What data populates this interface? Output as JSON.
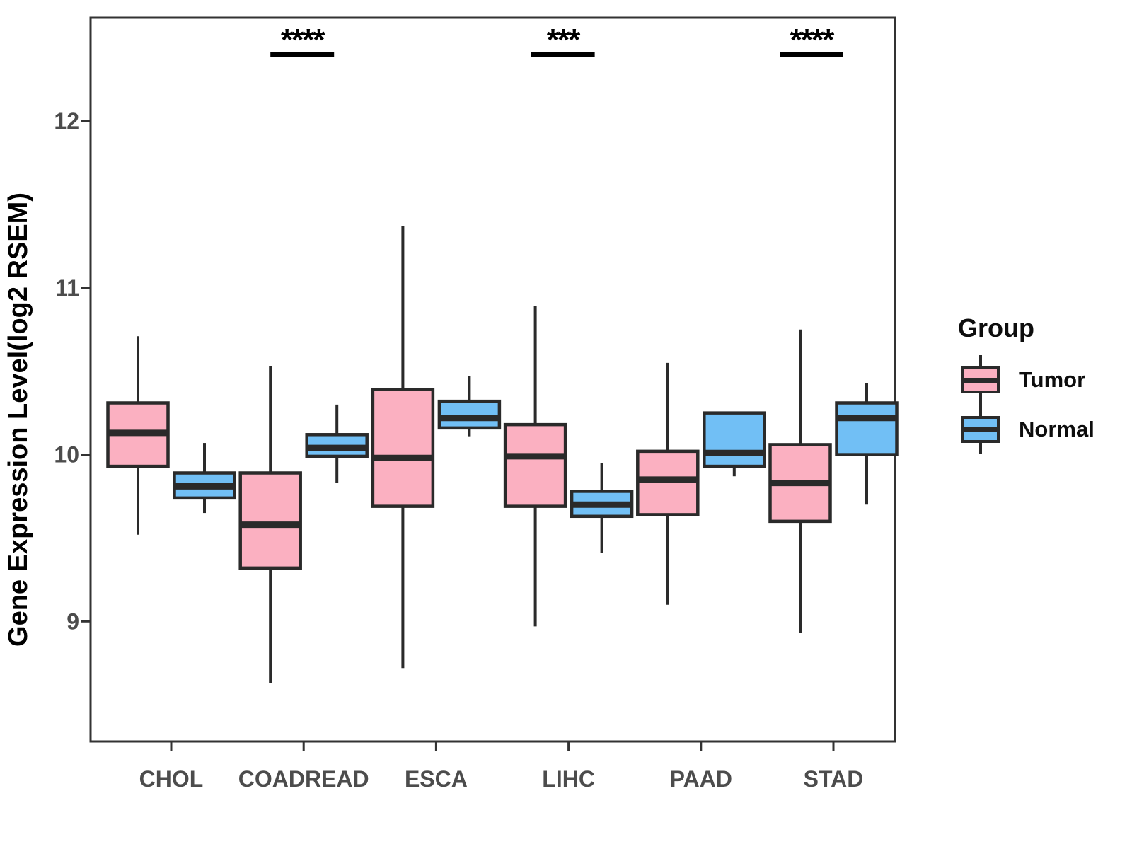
{
  "chart_data": {
    "type": "boxplot",
    "title": "",
    "xlabel": "",
    "ylabel": "Gene Expression Level(log2 RSEM)",
    "categories": [
      "CHOL",
      "COADREAD",
      "ESCA",
      "LIHC",
      "PAAD",
      "STAD"
    ],
    "y_ticks": [
      9,
      10,
      11,
      12
    ],
    "ylim": [
      8.28,
      12.62
    ],
    "grid": false,
    "legend": {
      "title": "Group",
      "position": "right"
    },
    "colors": {
      "tumor": "#FBB0C1",
      "normal": "#71BFF5",
      "stroke": "#2A2A2A",
      "axis_text": "#4C4C4C",
      "border": "#333333"
    },
    "series": [
      {
        "name": "Tumor",
        "color": "#FBB0C1",
        "boxes": [
          {
            "category": "CHOL",
            "min": 9.52,
            "q1": 9.93,
            "median": 10.13,
            "q3": 10.31,
            "max": 10.71
          },
          {
            "category": "COADREAD",
            "min": 8.63,
            "q1": 9.32,
            "median": 9.58,
            "q3": 9.89,
            "max": 10.53
          },
          {
            "category": "ESCA",
            "min": 8.72,
            "q1": 9.69,
            "median": 9.98,
            "q3": 10.39,
            "max": 11.37
          },
          {
            "category": "LIHC",
            "min": 8.97,
            "q1": 9.69,
            "median": 9.99,
            "q3": 10.18,
            "max": 10.89
          },
          {
            "category": "PAAD",
            "min": 9.1,
            "q1": 9.64,
            "median": 9.85,
            "q3": 10.02,
            "max": 10.55
          },
          {
            "category": "STAD",
            "min": 8.93,
            "q1": 9.6,
            "median": 9.83,
            "q3": 10.06,
            "max": 10.75
          }
        ]
      },
      {
        "name": "Normal",
        "color": "#71BFF5",
        "boxes": [
          {
            "category": "CHOL",
            "min": 9.65,
            "q1": 9.74,
            "median": 9.81,
            "q3": 9.89,
            "max": 10.07
          },
          {
            "category": "COADREAD",
            "min": 9.83,
            "q1": 9.99,
            "median": 10.04,
            "q3": 10.12,
            "max": 10.3
          },
          {
            "category": "ESCA",
            "min": 10.11,
            "q1": 10.16,
            "median": 10.22,
            "q3": 10.32,
            "max": 10.47
          },
          {
            "category": "LIHC",
            "min": 9.41,
            "q1": 9.63,
            "median": 9.7,
            "q3": 9.78,
            "max": 9.95
          },
          {
            "category": "PAAD",
            "min": 9.87,
            "q1": 9.93,
            "median": 10.01,
            "q3": 10.25,
            "max": 10.25
          },
          {
            "category": "STAD",
            "min": 9.7,
            "q1": 10.0,
            "median": 10.22,
            "q3": 10.31,
            "max": 10.43
          }
        ]
      }
    ],
    "significance": [
      {
        "category": "COADREAD",
        "label": "****"
      },
      {
        "category": "LIHC",
        "label": "***"
      },
      {
        "category": "STAD",
        "label": "****"
      }
    ]
  }
}
